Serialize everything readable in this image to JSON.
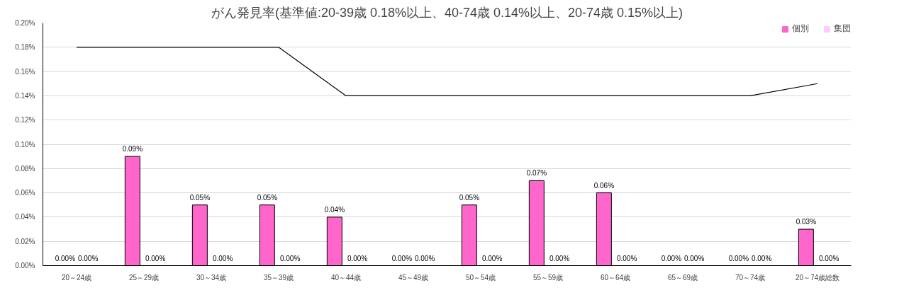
{
  "chart_data": {
    "type": "bar",
    "title": "がん発見率(基準値:20-39歳 0.18%以上、40-74歳 0.14%以上、20-74歳 0.15%以上)",
    "categories": [
      "20～24歳",
      "25～29歳",
      "30～34歳",
      "35～39歳",
      "40～44歳",
      "45～49歳",
      "50～54歳",
      "55～59歳",
      "60～64歳",
      "65～69歳",
      "70～74歳",
      "20～74歳総数"
    ],
    "series": [
      {
        "name": "個別",
        "color": "#ff66cc",
        "values": [
          0,
          0.09,
          0.05,
          0.05,
          0.04,
          0,
          0.05,
          0.07,
          0.06,
          0,
          0,
          0.03
        ],
        "value_labels": [
          "0.00%",
          "0.09%",
          "0.05%",
          "0.05%",
          "0.04%",
          "0.00%",
          "0.05%",
          "0.07%",
          "0.06%",
          "0.00%",
          "0.00%",
          "0.03%"
        ]
      },
      {
        "name": "集団",
        "color": "#ffccff",
        "values": [
          0,
          0,
          0,
          0,
          0,
          0,
          0,
          0,
          0,
          0,
          0,
          0
        ],
        "value_labels": [
          "0.00%",
          "0.00%",
          "0.00%",
          "0.00%",
          "0.00%",
          "0.00%",
          "0.00%",
          "0.00%",
          "0.00%",
          "0.00%",
          "0.00%",
          "0.00%"
        ]
      },
      {
        "type": "line",
        "color": "#000000",
        "values": [
          0.18,
          0.18,
          0.18,
          0.18,
          0.14,
          0.14,
          0.14,
          0.14,
          0.14,
          0.14,
          0.14,
          0.15
        ]
      }
    ],
    "ylim": [
      0,
      0.2
    ],
    "yticks": [
      {
        "value": 0,
        "label": "0.00%"
      },
      {
        "value": 0.02,
        "label": "0.02%"
      },
      {
        "value": 0.04,
        "label": "0.04%"
      },
      {
        "value": 0.06,
        "label": "0.06%"
      },
      {
        "value": 0.08,
        "label": "0.08%"
      },
      {
        "value": 0.1,
        "label": "0.10%"
      },
      {
        "value": 0.12,
        "label": "0.12%"
      },
      {
        "value": 0.14,
        "label": "0.14%"
      },
      {
        "value": 0.16,
        "label": "0.16%"
      },
      {
        "value": 0.18,
        "label": "0.18%"
      },
      {
        "value": 0.2,
        "label": "0.20%"
      }
    ],
    "grid": "y",
    "legend": "top right"
  }
}
